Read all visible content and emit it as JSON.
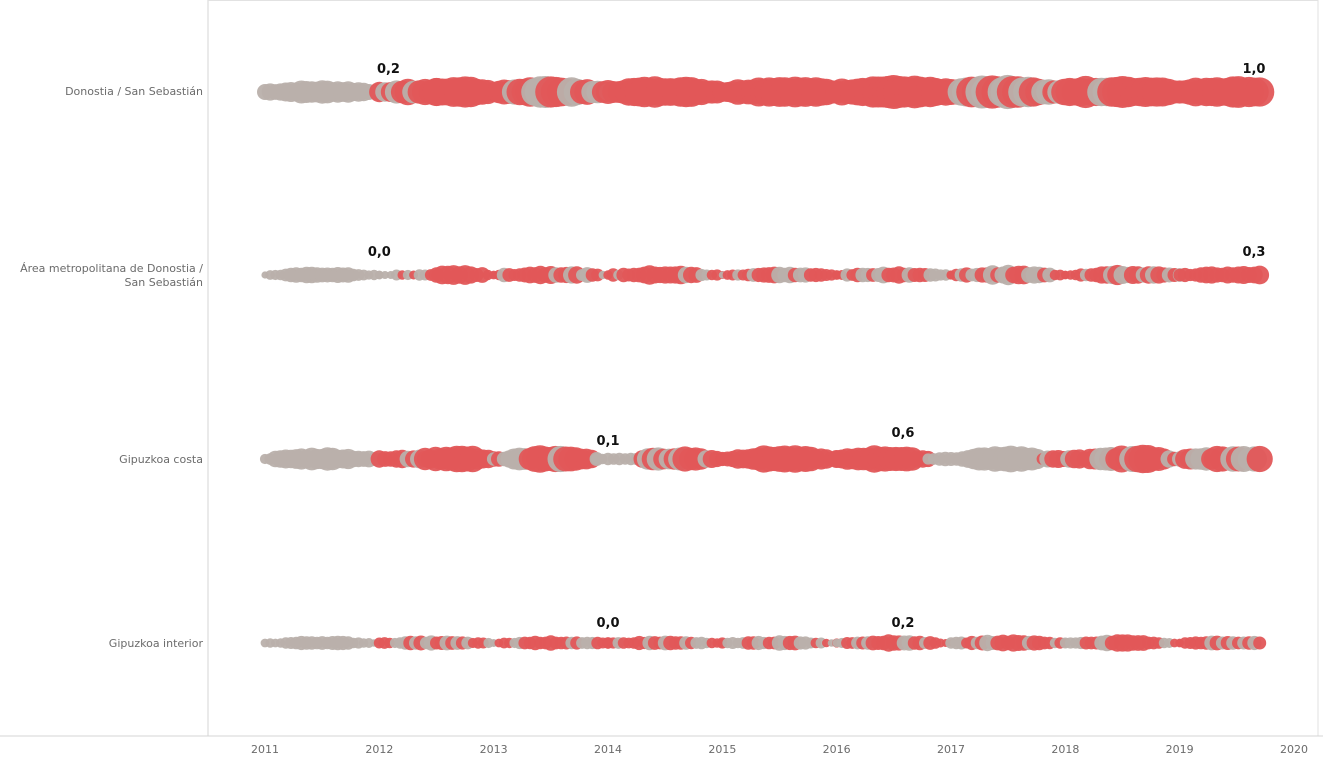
{
  "colors": {
    "red": "#e15759",
    "gray": "#b9b0ab",
    "axis_line": "#d4d4d4",
    "label_text": "#6b6b6b",
    "value_text": "#111111"
  },
  "chart_data": {
    "type": "scatter",
    "subtype": "bubble-timeline",
    "title": "",
    "xlabel": "",
    "ylabel": "",
    "x_ticks": [
      "2011",
      "2012",
      "2013",
      "2014",
      "2015",
      "2016",
      "2017",
      "2018",
      "2019",
      "2020"
    ],
    "xlim": [
      2011,
      2020
    ],
    "grid": false,
    "legend": "none",
    "color_encoding": {
      "red": "above threshold / positive",
      "gray": "below threshold / neutral"
    },
    "rows": [
      {
        "name": "Donostia / San Sebastián",
        "labels": [
          {
            "text": "0,2",
            "x": 2012.08
          },
          {
            "text": "1,0",
            "x": 2019.65
          }
        ],
        "segments": [
          {
            "from": 2011.0,
            "to": 2012.0,
            "color": "gray",
            "r0": 8,
            "r1": 11,
            "r2": 8
          },
          {
            "from": 2012.0,
            "to": 2012.5,
            "color": "mix",
            "r0": 9,
            "r1": 12,
            "r2": 13
          },
          {
            "from": 2012.5,
            "to": 2013.0,
            "color": "red",
            "r0": 13,
            "r1": 15,
            "r2": 11
          },
          {
            "from": 2013.0,
            "to": 2014.0,
            "color": "mix2",
            "r0": 10,
            "r1": 15,
            "r2": 10
          },
          {
            "from": 2014.0,
            "to": 2015.0,
            "color": "red",
            "r0": 11,
            "r1": 15,
            "r2": 11
          },
          {
            "from": 2015.0,
            "to": 2016.0,
            "color": "red",
            "r0": 10,
            "r1": 15,
            "r2": 12
          },
          {
            "from": 2016.0,
            "to": 2017.0,
            "color": "red",
            "r0": 12,
            "r1": 16,
            "r2": 12
          },
          {
            "from": 2017.0,
            "to": 2017.9,
            "color": "stripe",
            "r0": 12,
            "r1": 16,
            "r2": 11
          },
          {
            "from": 2017.9,
            "to": 2018.5,
            "color": "mix2",
            "r0": 11,
            "r1": 15,
            "r2": 14
          },
          {
            "from": 2018.5,
            "to": 2019.0,
            "color": "red",
            "r0": 15,
            "r1": 15,
            "r2": 12
          },
          {
            "from": 2019.0,
            "to": 2019.7,
            "color": "red",
            "r0": 11,
            "r1": 15,
            "r2": 15
          }
        ]
      },
      {
        "name": "Área metropolitana de Donostia / San Sebastián",
        "labels": [
          {
            "text": "0,0",
            "x": 2012.0
          },
          {
            "text": "0,3",
            "x": 2019.65
          }
        ],
        "segments": [
          {
            "from": 2011.0,
            "to": 2012.0,
            "color": "gray",
            "r0": 4,
            "r1": 8,
            "r2": 4
          },
          {
            "from": 2012.0,
            "to": 2012.5,
            "color": "mix",
            "r0": 4,
            "r1": 5,
            "r2": 6
          },
          {
            "from": 2012.5,
            "to": 2013.0,
            "color": "red",
            "r0": 8,
            "r1": 9,
            "r2": 4
          },
          {
            "from": 2013.0,
            "to": 2014.0,
            "color": "mix3",
            "r0": 5,
            "r1": 9,
            "r2": 4
          },
          {
            "from": 2014.0,
            "to": 2015.0,
            "color": "mix3",
            "r0": 5,
            "r1": 9,
            "r2": 4
          },
          {
            "from": 2015.0,
            "to": 2016.0,
            "color": "mix3",
            "r0": 4,
            "r1": 8,
            "r2": 5
          },
          {
            "from": 2016.0,
            "to": 2017.0,
            "color": "mix3",
            "r0": 5,
            "r1": 8,
            "r2": 5
          },
          {
            "from": 2017.0,
            "to": 2018.0,
            "color": "mix3",
            "r0": 5,
            "r1": 9,
            "r2": 5
          },
          {
            "from": 2018.0,
            "to": 2019.0,
            "color": "mix3",
            "r0": 5,
            "r1": 9,
            "r2": 6
          },
          {
            "from": 2019.0,
            "to": 2019.7,
            "color": "red",
            "r0": 6,
            "r1": 8,
            "r2": 9
          }
        ]
      },
      {
        "name": "Gipuzkoa costa",
        "labels": [
          {
            "text": "0,1",
            "x": 2014.0
          },
          {
            "text": "0,6",
            "x": 2016.58
          }
        ],
        "segments": [
          {
            "from": 2011.0,
            "to": 2012.0,
            "color": "gray",
            "r0": 6,
            "r1": 11,
            "r2": 6
          },
          {
            "from": 2012.0,
            "to": 2012.4,
            "color": "mix",
            "r0": 8,
            "r1": 9,
            "r2": 9
          },
          {
            "from": 2012.4,
            "to": 2013.0,
            "color": "red",
            "r0": 10,
            "r1": 13,
            "r2": 8
          },
          {
            "from": 2013.0,
            "to": 2013.9,
            "color": "mix2",
            "r0": 6,
            "r1": 13,
            "r2": 8
          },
          {
            "from": 2013.9,
            "to": 2014.3,
            "color": "gray",
            "r0": 5,
            "r1": 6,
            "r2": 7
          },
          {
            "from": 2014.3,
            "to": 2015.0,
            "color": "mix2",
            "r0": 9,
            "r1": 12,
            "r2": 7
          },
          {
            "from": 2015.0,
            "to": 2016.0,
            "color": "red",
            "r0": 7,
            "r1": 13,
            "r2": 8
          },
          {
            "from": 2016.0,
            "to": 2016.8,
            "color": "red",
            "r0": 8,
            "r1": 13,
            "r2": 8
          },
          {
            "from": 2016.8,
            "to": 2017.2,
            "color": "gray",
            "r0": 6,
            "r1": 7,
            "r2": 9
          },
          {
            "from": 2017.2,
            "to": 2017.8,
            "color": "gray",
            "r0": 10,
            "r1": 13,
            "r2": 8
          },
          {
            "from": 2017.8,
            "to": 2018.4,
            "color": "mix2",
            "r0": 7,
            "r1": 9,
            "r2": 11
          },
          {
            "from": 2018.4,
            "to": 2019.0,
            "color": "mix2",
            "r0": 12,
            "r1": 13,
            "r2": 7
          },
          {
            "from": 2019.0,
            "to": 2019.7,
            "color": "mix2",
            "r0": 8,
            "r1": 12,
            "r2": 12
          }
        ]
      },
      {
        "name": "Gipuzkoa interior",
        "labels": [
          {
            "text": "0,0",
            "x": 2014.0
          },
          {
            "text": "0,2",
            "x": 2016.58
          }
        ],
        "segments": [
          {
            "from": 2011.0,
            "to": 2012.0,
            "color": "gray",
            "r0": 4,
            "r1": 7,
            "r2": 4
          },
          {
            "from": 2012.0,
            "to": 2013.0,
            "color": "mix",
            "r0": 5,
            "r1": 7,
            "r2": 4
          },
          {
            "from": 2013.0,
            "to": 2014.0,
            "color": "mix3",
            "r0": 4,
            "r1": 7,
            "r2": 5
          },
          {
            "from": 2014.0,
            "to": 2015.0,
            "color": "mix3",
            "r0": 5,
            "r1": 7,
            "r2": 4
          },
          {
            "from": 2015.0,
            "to": 2016.0,
            "color": "mix3",
            "r0": 5,
            "r1": 7,
            "r2": 4
          },
          {
            "from": 2016.0,
            "to": 2017.0,
            "color": "mix3",
            "r0": 5,
            "r1": 8,
            "r2": 4
          },
          {
            "from": 2017.0,
            "to": 2018.0,
            "color": "mix3",
            "r0": 5,
            "r1": 8,
            "r2": 5
          },
          {
            "from": 2018.0,
            "to": 2019.0,
            "color": "mix3",
            "r0": 5,
            "r1": 8,
            "r2": 4
          },
          {
            "from": 2019.0,
            "to": 2019.7,
            "color": "mix3",
            "r0": 5,
            "r1": 7,
            "r2": 7
          }
        ]
      }
    ]
  }
}
